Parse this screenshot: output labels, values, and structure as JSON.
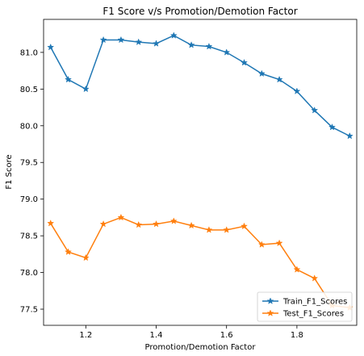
{
  "chart_data": {
    "type": "line",
    "title": "F1 Score v/s Promotion/Demotion Factor",
    "xlabel": "Promotion/Demotion Factor",
    "ylabel": "F1 Score",
    "xlim": [
      1.08,
      1.97
    ],
    "ylim": [
      77.28,
      81.45
    ],
    "xticks": [
      1.2,
      1.4,
      1.6,
      1.8
    ],
    "xtick_labels": [
      "1.2",
      "1.4",
      "1.6",
      "1.8"
    ],
    "yticks": [
      77.5,
      78.0,
      78.5,
      79.0,
      79.5,
      80.0,
      80.5,
      81.0
    ],
    "ytick_labels": [
      "77.5",
      "78.0",
      "78.5",
      "79.0",
      "79.5",
      "80.0",
      "80.5",
      "81.0"
    ],
    "x": [
      1.1,
      1.15,
      1.2,
      1.25,
      1.3,
      1.35,
      1.4,
      1.45,
      1.5,
      1.55,
      1.6,
      1.65,
      1.7,
      1.75,
      1.8,
      1.85,
      1.9,
      1.95
    ],
    "series": [
      {
        "name": "Train_F1_Scores",
        "color": "#1f77b4",
        "marker": "star",
        "values": [
          81.07,
          80.63,
          80.5,
          81.17,
          81.17,
          81.14,
          81.12,
          81.23,
          81.1,
          81.08,
          81.0,
          80.86,
          80.71,
          80.63,
          80.47,
          80.21,
          79.98,
          79.86
        ]
      },
      {
        "name": "Test_F1_Scores",
        "color": "#ff7f0e",
        "marker": "star",
        "values": [
          78.67,
          78.28,
          78.2,
          78.66,
          78.75,
          78.65,
          78.66,
          78.7,
          78.64,
          78.58,
          78.58,
          78.63,
          78.38,
          78.4,
          78.04,
          77.92,
          77.55,
          77.52
        ]
      }
    ],
    "grid": false,
    "legend_position": "lower-right"
  }
}
